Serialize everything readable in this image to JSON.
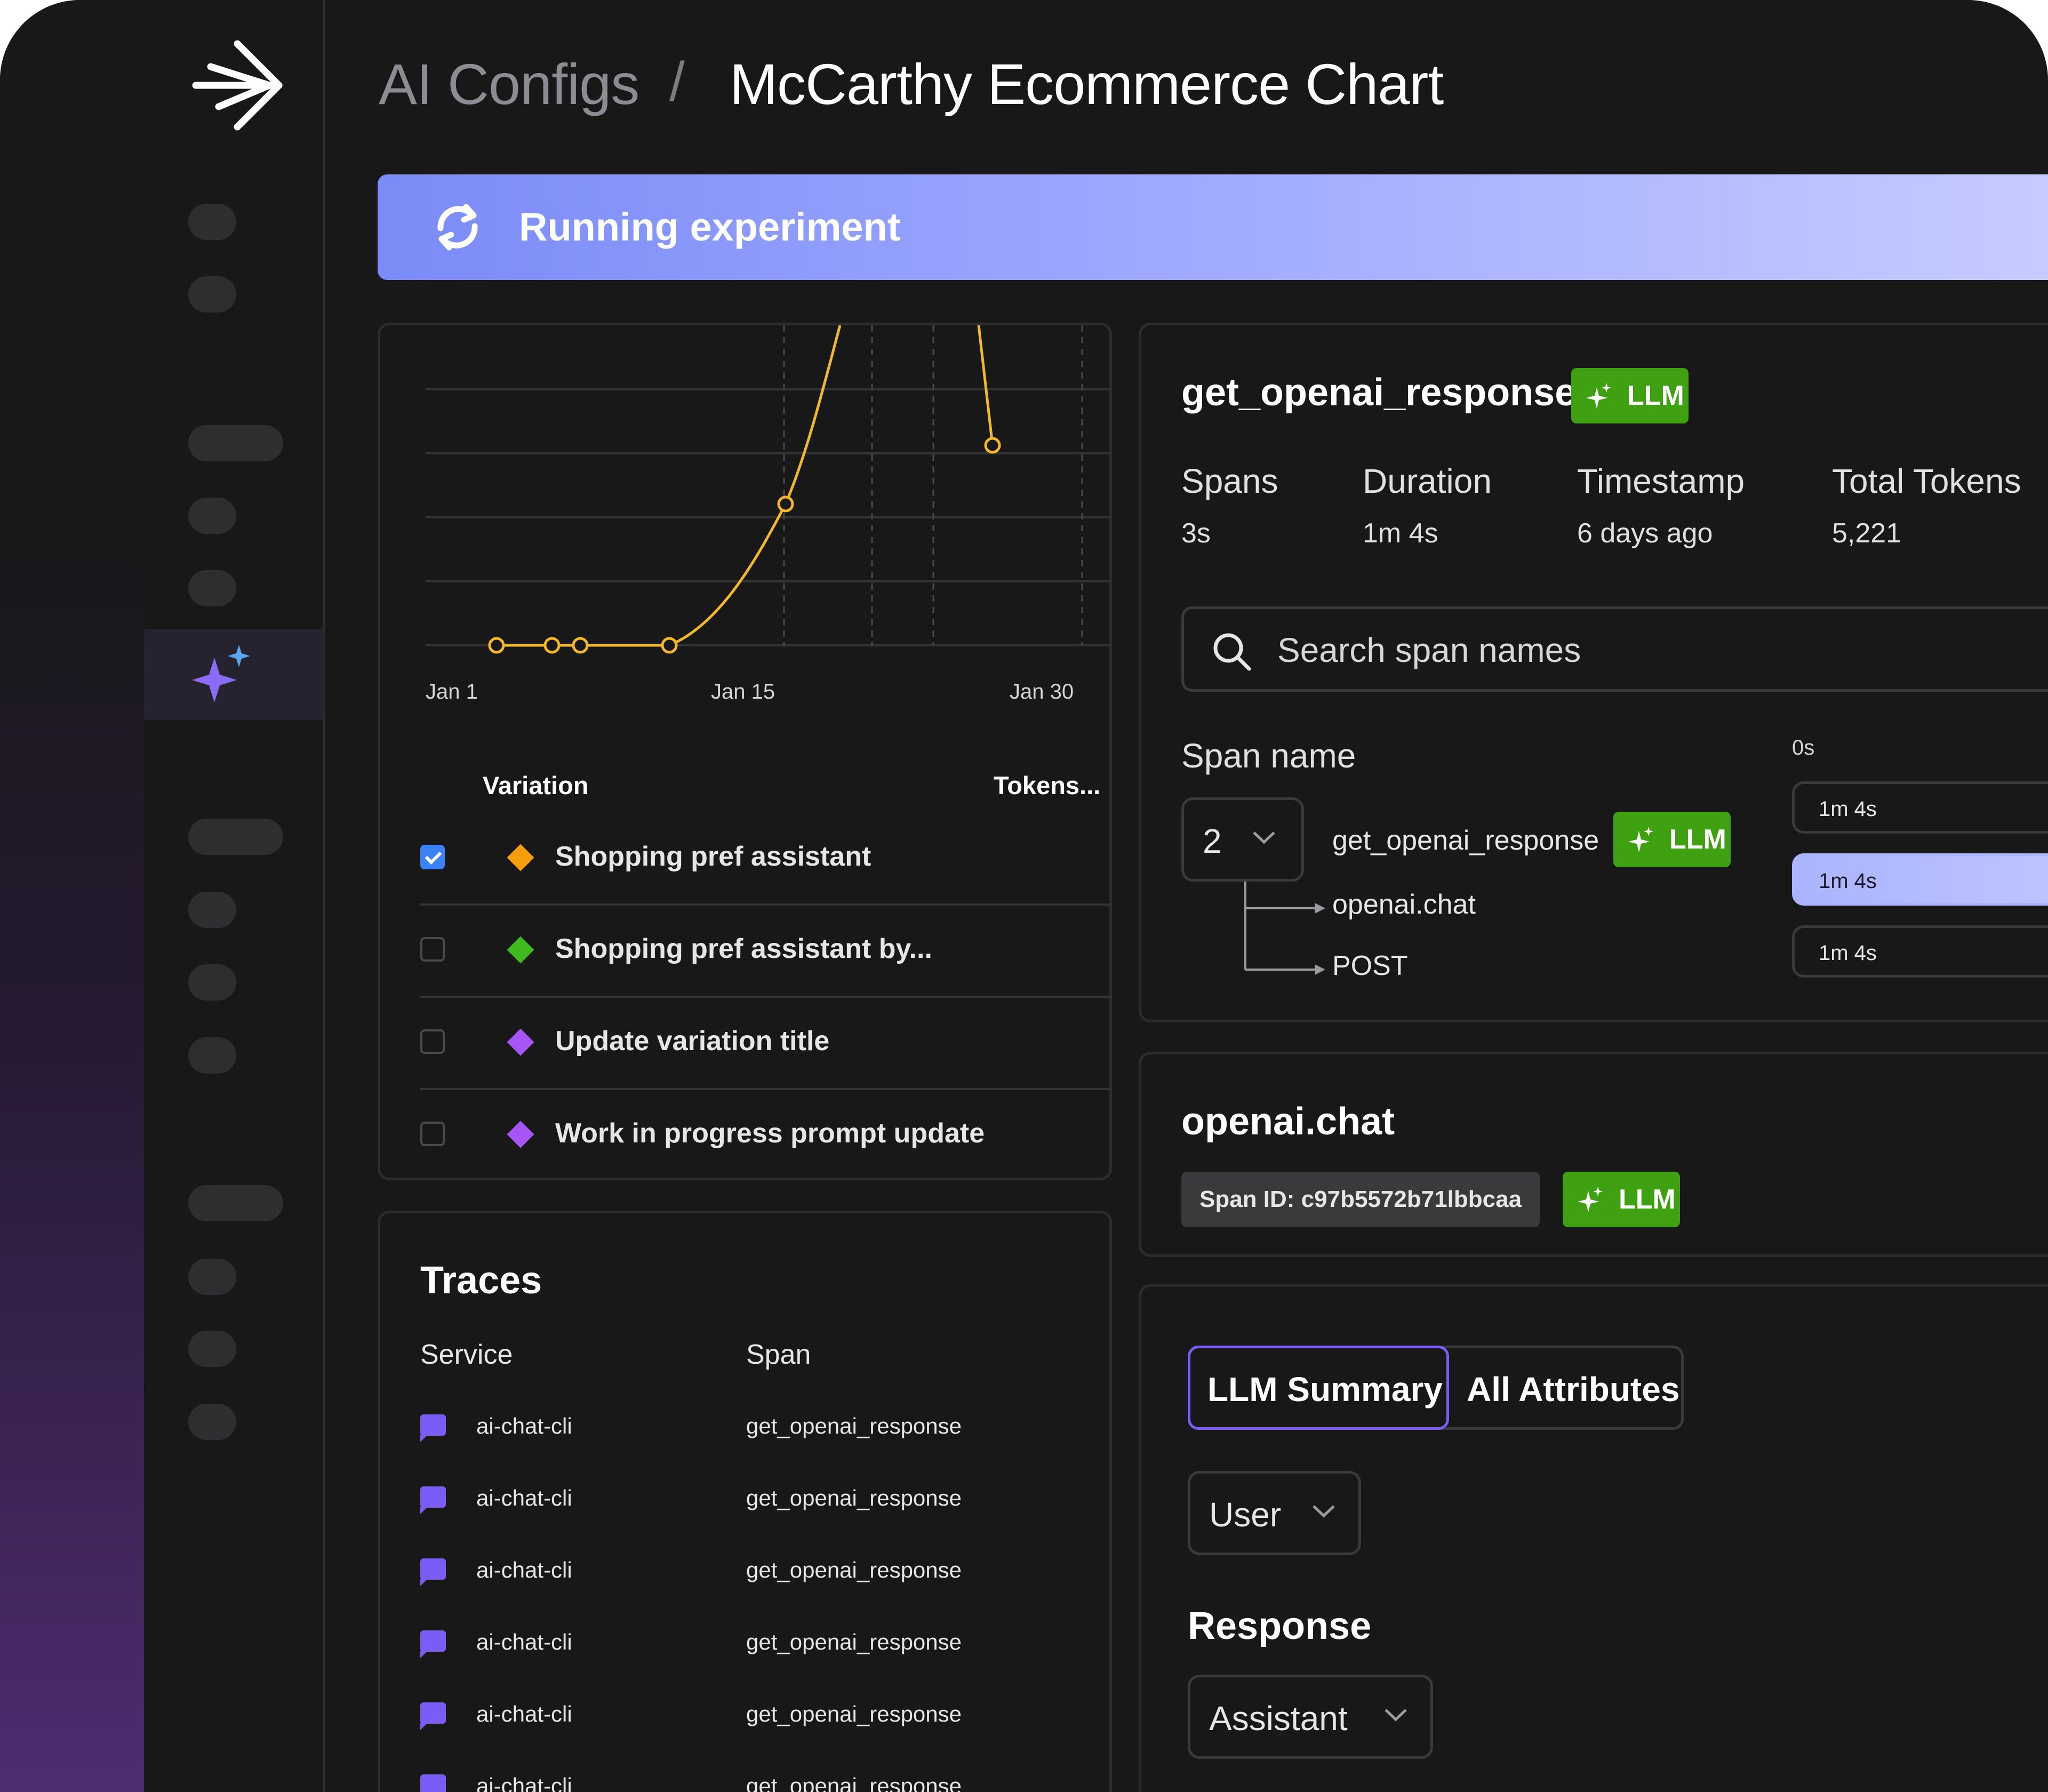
{
  "breadcrumb": {
    "parent": "AI Configs",
    "separator": "/",
    "current": "McCarthy Ecommerce Chart"
  },
  "banner": {
    "text": "Running experiment",
    "color_start": "#7b8bf7",
    "color_end": "#c7ccff"
  },
  "chart_data": {
    "type": "line",
    "x_ticks": [
      "Jan 1",
      "Jan 15",
      "Jan 30"
    ],
    "series": [
      {
        "color": "#f2b829"
      }
    ],
    "grid": true
  },
  "variations": {
    "header_variation": "Variation",
    "header_tokens": "Tokens...",
    "rows": [
      {
        "label": "Shopping pref assistant",
        "color": "#f59e0b",
        "checked": true
      },
      {
        "label": "Shopping pref assistant by...",
        "color": "#3fb91e",
        "checked": false
      },
      {
        "label": "Update variation title",
        "color": "#a855f7",
        "checked": false
      },
      {
        "label": "Work in progress prompt update",
        "color": "#a855f7",
        "checked": false
      }
    ]
  },
  "traces": {
    "title": "Traces",
    "col_service": "Service",
    "col_span": "Span",
    "rows": [
      {
        "service": "ai-chat-cli",
        "span": "get_openai_response"
      },
      {
        "service": "ai-chat-cli",
        "span": "get_openai_response"
      },
      {
        "service": "ai-chat-cli",
        "span": "get_openai_response"
      },
      {
        "service": "ai-chat-cli",
        "span": "get_openai_response"
      },
      {
        "service": "ai-chat-cli",
        "span": "get_openai_response"
      },
      {
        "service": "ai-chat-cli",
        "span": "get_openai_response"
      }
    ]
  },
  "span_detail": {
    "title": "get_openai_response",
    "badge": "LLM",
    "stats": [
      {
        "label": "Spans",
        "value": "3s"
      },
      {
        "label": "Duration",
        "value": "1m 4s"
      },
      {
        "label": "Timestamp",
        "value": "6 days ago"
      },
      {
        "label": "Total Tokens",
        "value": "5,221"
      }
    ],
    "search_placeholder": "Search span names",
    "span_name_label": "Span name",
    "depth_value": "2",
    "tree": [
      "get_openai_response",
      "openai.chat",
      "POST"
    ],
    "timeline_start": "0s",
    "timeline": [
      "1m 4s",
      "1m 4s",
      "1m 4s"
    ]
  },
  "openai_chat": {
    "title": "openai.chat",
    "span_id": "Span ID: c97b5572b71lbbcaa",
    "badge": "LLM"
  },
  "summary": {
    "tab_active": "LLM Summary",
    "tab_other": "All Attributes",
    "role_value": "User",
    "response_title": "Response",
    "response_role": "Assistant"
  },
  "colors": {
    "accent_green": "#3fa012",
    "accent_purple": "#7b5cf5",
    "chart_line": "#f2b829"
  }
}
